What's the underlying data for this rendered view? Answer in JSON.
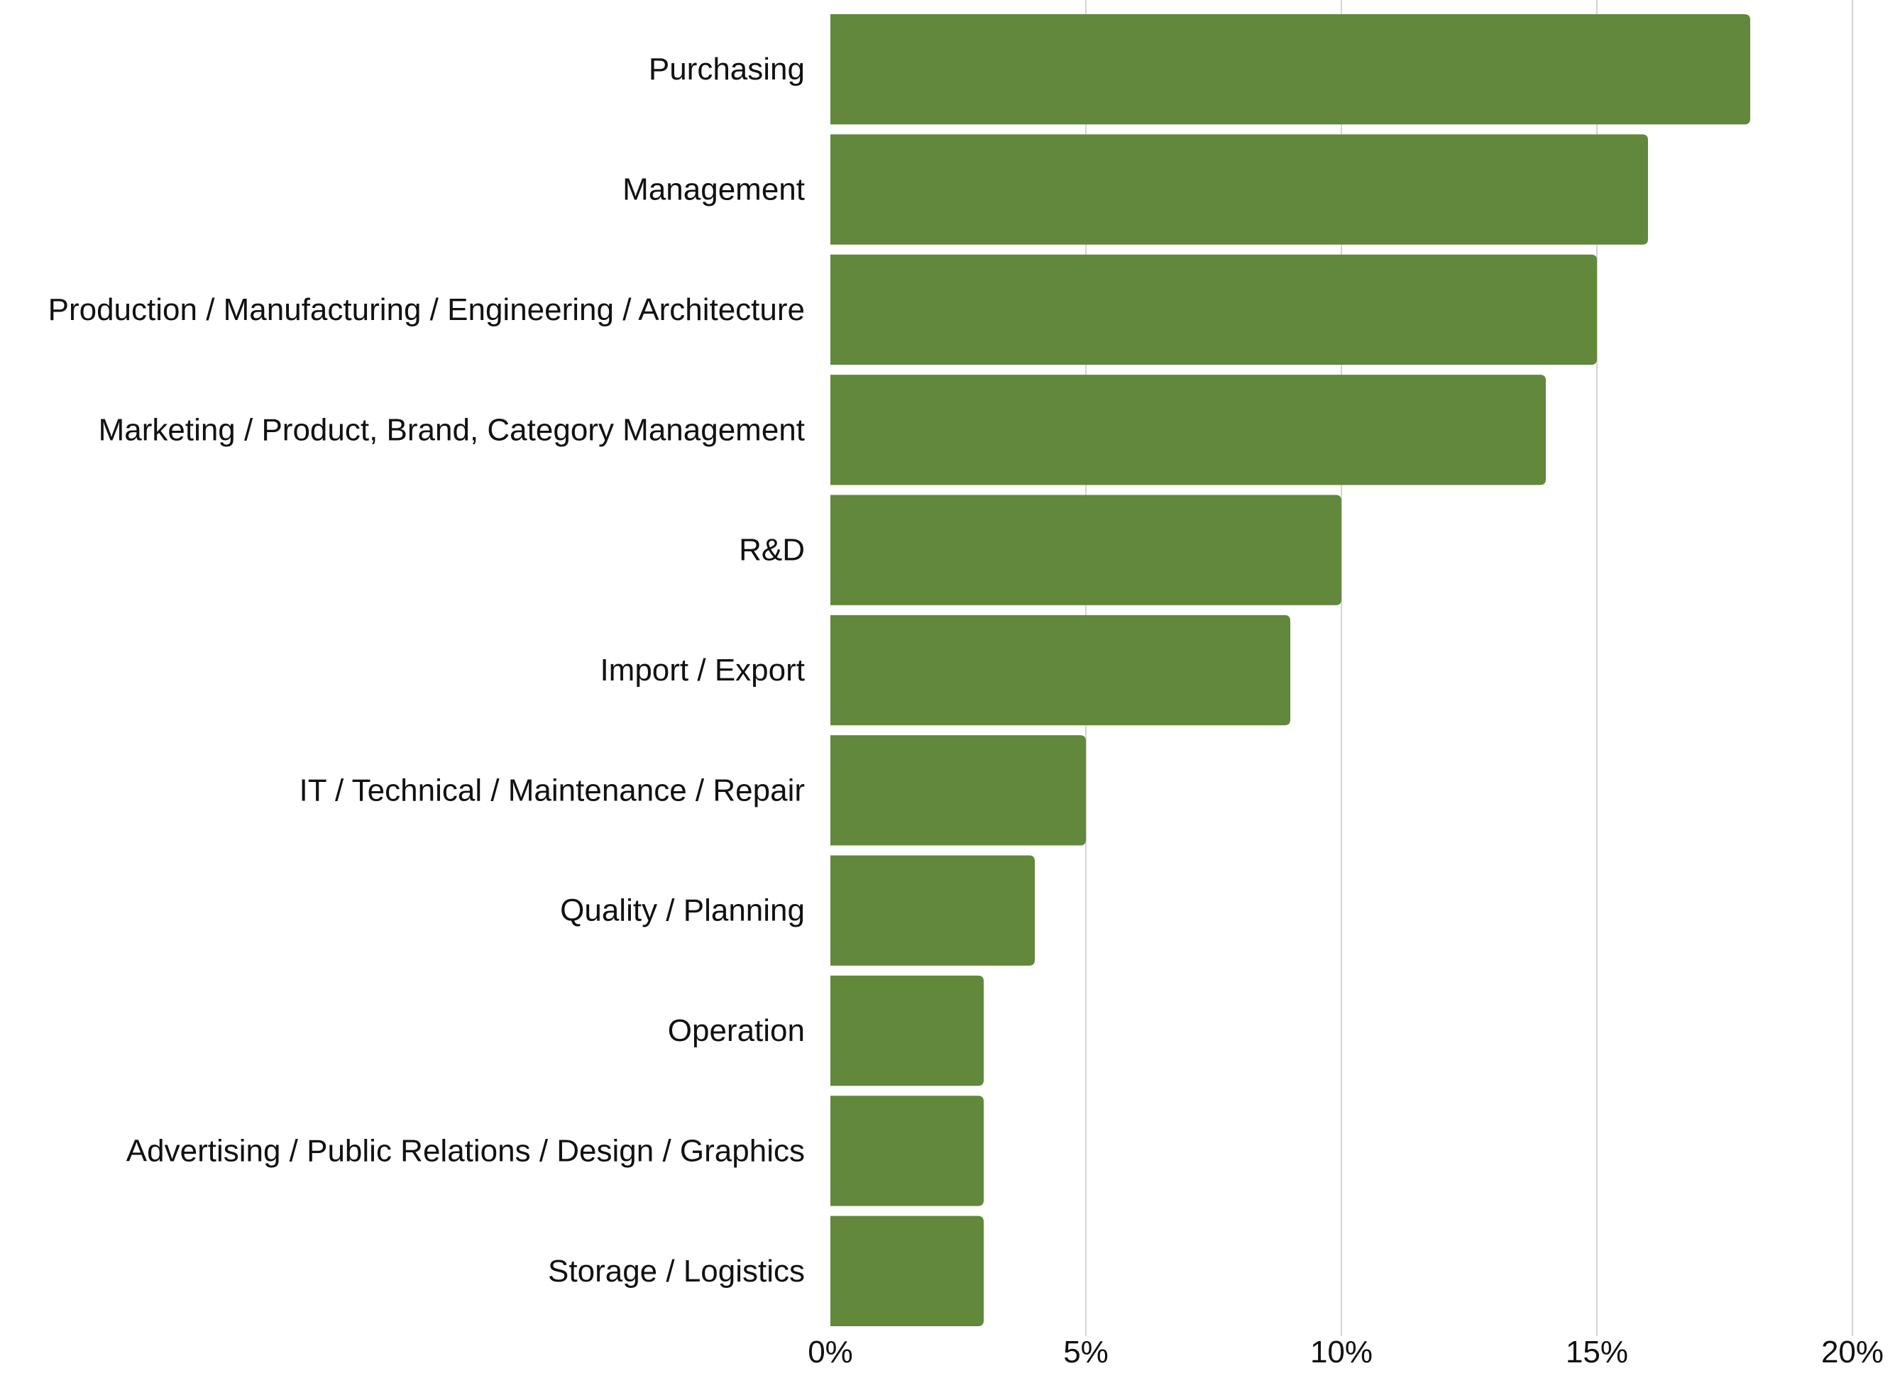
{
  "chart_data": {
    "type": "bar",
    "orientation": "horizontal",
    "categories": [
      "Purchasing",
      "Management",
      "Production / Manufacturing / Engineering / Architecture",
      "Marketing / Product, Brand, Category Management",
      "R&D",
      "Import / Export",
      "IT / Technical / Maintenance / Repair",
      "Quality / Planning",
      "Operation",
      "Advertising / Public Relations / Design / Graphics",
      "Storage / Logistics"
    ],
    "values": [
      18,
      16,
      15,
      14,
      10,
      9,
      5,
      4,
      3,
      3,
      3
    ],
    "xlim": [
      0,
      20
    ],
    "xticks": [
      0,
      5,
      10,
      15,
      20
    ],
    "xtick_labels": [
      "0%",
      "5%",
      "10%",
      "15%",
      "20%"
    ],
    "title": "",
    "xlabel": "",
    "ylabel": "",
    "grid": "vertical",
    "legend": "none",
    "bar_color": "#62883c",
    "grid_color": "#d4d4d4",
    "text_color": "#111111"
  }
}
